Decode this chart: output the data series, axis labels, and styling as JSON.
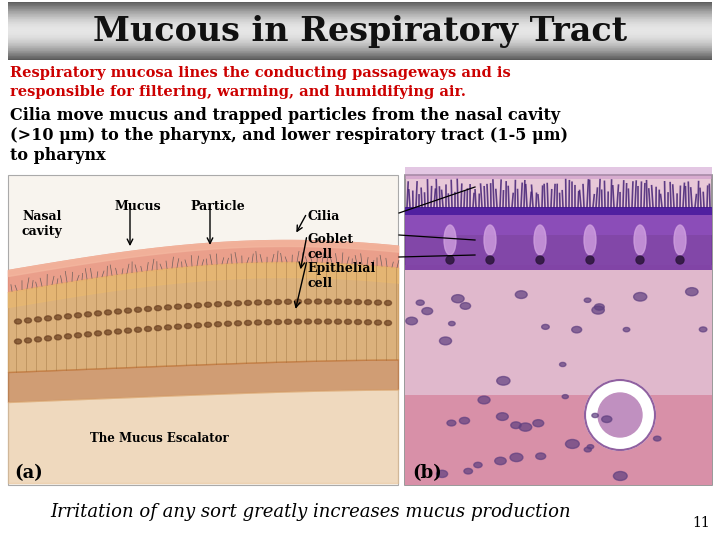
{
  "title": "Mucous in Respiratory Tract",
  "subtitle_red": "Respiratory mucosa lines the conducting passageways and is\nresponsible for filtering, warming, and humidifying air.",
  "body_text_line1": "Cilia move mucus and trapped particles from the nasal cavity",
  "body_text_line2": "(>10 μm) to the pharynx, and lower respiratory tract (1-5 μm)",
  "body_text_line3": "to pharynx",
  "footer_text": "Irritation of any sort greatly increases mucus production",
  "slide_number": "11",
  "label_a": "(a)",
  "label_b": "(b)",
  "label_mucus_escalator": "The Mucus Escalator",
  "bg_color": "#ffffff",
  "title_text_color": "#111111",
  "subtitle_color": "#cc0000",
  "body_color": "#000000"
}
